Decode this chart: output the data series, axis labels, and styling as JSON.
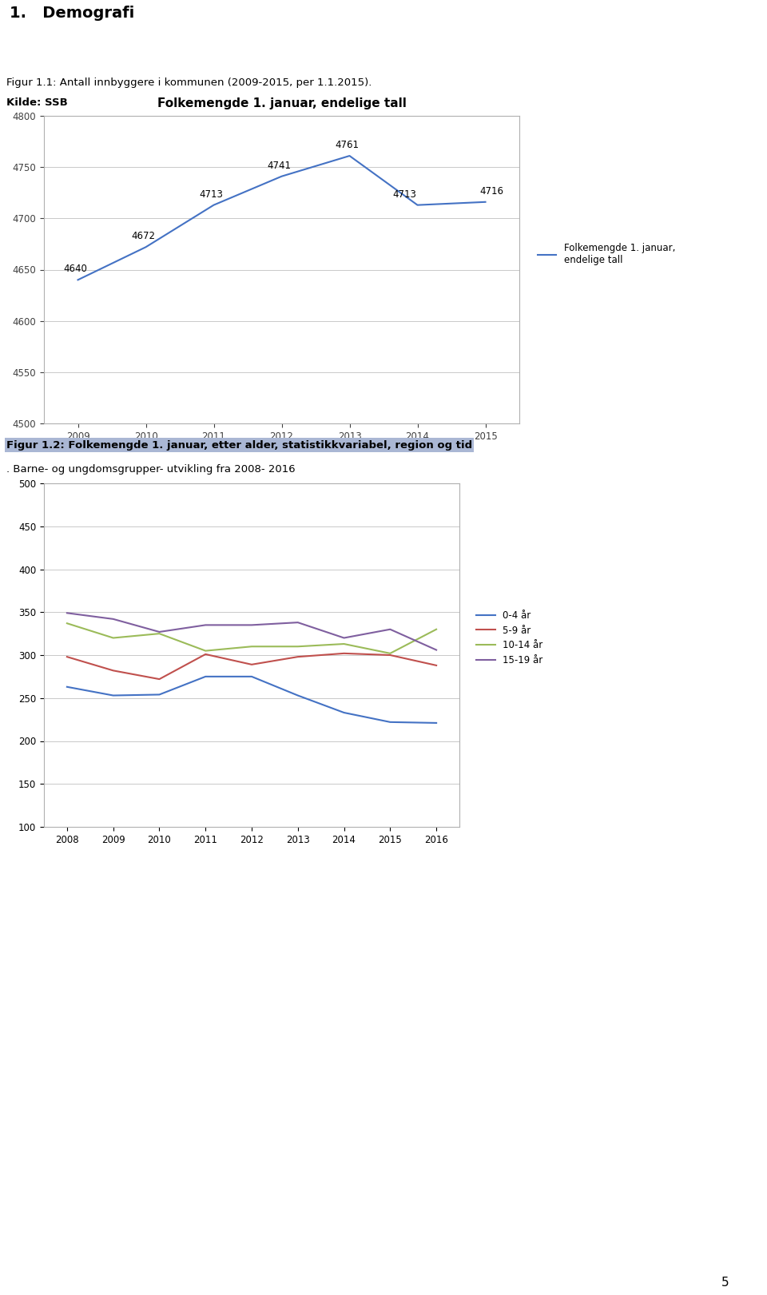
{
  "page_bg": "#ffffff",
  "header_bg": "#aab7d4",
  "header_text": "1.   Demografi",
  "header_fontsize": 14,
  "fig1_caption": "Figur 1.1: Antall innbyggere i kommunen (2009-2015, per 1.1.2015).",
  "fig1_caption_bg": "#aab7d4",
  "fig1_source": "Kilde: SSB",
  "fig1_title": "Folkemengde 1. januar, endelige tall",
  "fig1_years": [
    2009,
    2010,
    2011,
    2012,
    2013,
    2014,
    2015
  ],
  "fig1_values": [
    4640,
    4672,
    4713,
    4741,
    4761,
    4713,
    4716
  ],
  "fig1_line_color": "#4472c4",
  "fig1_legend": "Folkemengde 1. januar,\nendelige tall",
  "fig1_ylim": [
    4500,
    4800
  ],
  "fig1_yticks": [
    4500,
    4550,
    4600,
    4650,
    4700,
    4750,
    4800
  ],
  "fig2_caption_bold": "Figur 1.2: Folkemengde 1. januar, etter alder, statistikkvariabel, region og tid",
  "fig2_caption_normal": ". Barne- og ungdomsgrupper- utvikling fra 2008- 2016",
  "fig2_years": [
    2008,
    2009,
    2010,
    2011,
    2012,
    2013,
    2014,
    2015,
    2016
  ],
  "fig2_series": {
    "0-4 år": [
      263,
      253,
      254,
      275,
      275,
      253,
      233,
      222,
      221
    ],
    "5-9 år": [
      298,
      282,
      272,
      301,
      289,
      298,
      302,
      300,
      288
    ],
    "10-14 år": [
      337,
      320,
      325,
      305,
      310,
      310,
      313,
      302,
      330
    ],
    "15-19 år": [
      349,
      342,
      327,
      335,
      335,
      338,
      320,
      330,
      306
    ]
  },
  "fig2_colors": {
    "0-4 år": "#4472c4",
    "5-9 år": "#c0504d",
    "10-14 år": "#9bbb59",
    "15-19 år": "#7f5f9f"
  },
  "fig2_ylim": [
    100,
    500
  ],
  "fig2_yticks": [
    100,
    150,
    200,
    250,
    300,
    350,
    400,
    450,
    500
  ]
}
